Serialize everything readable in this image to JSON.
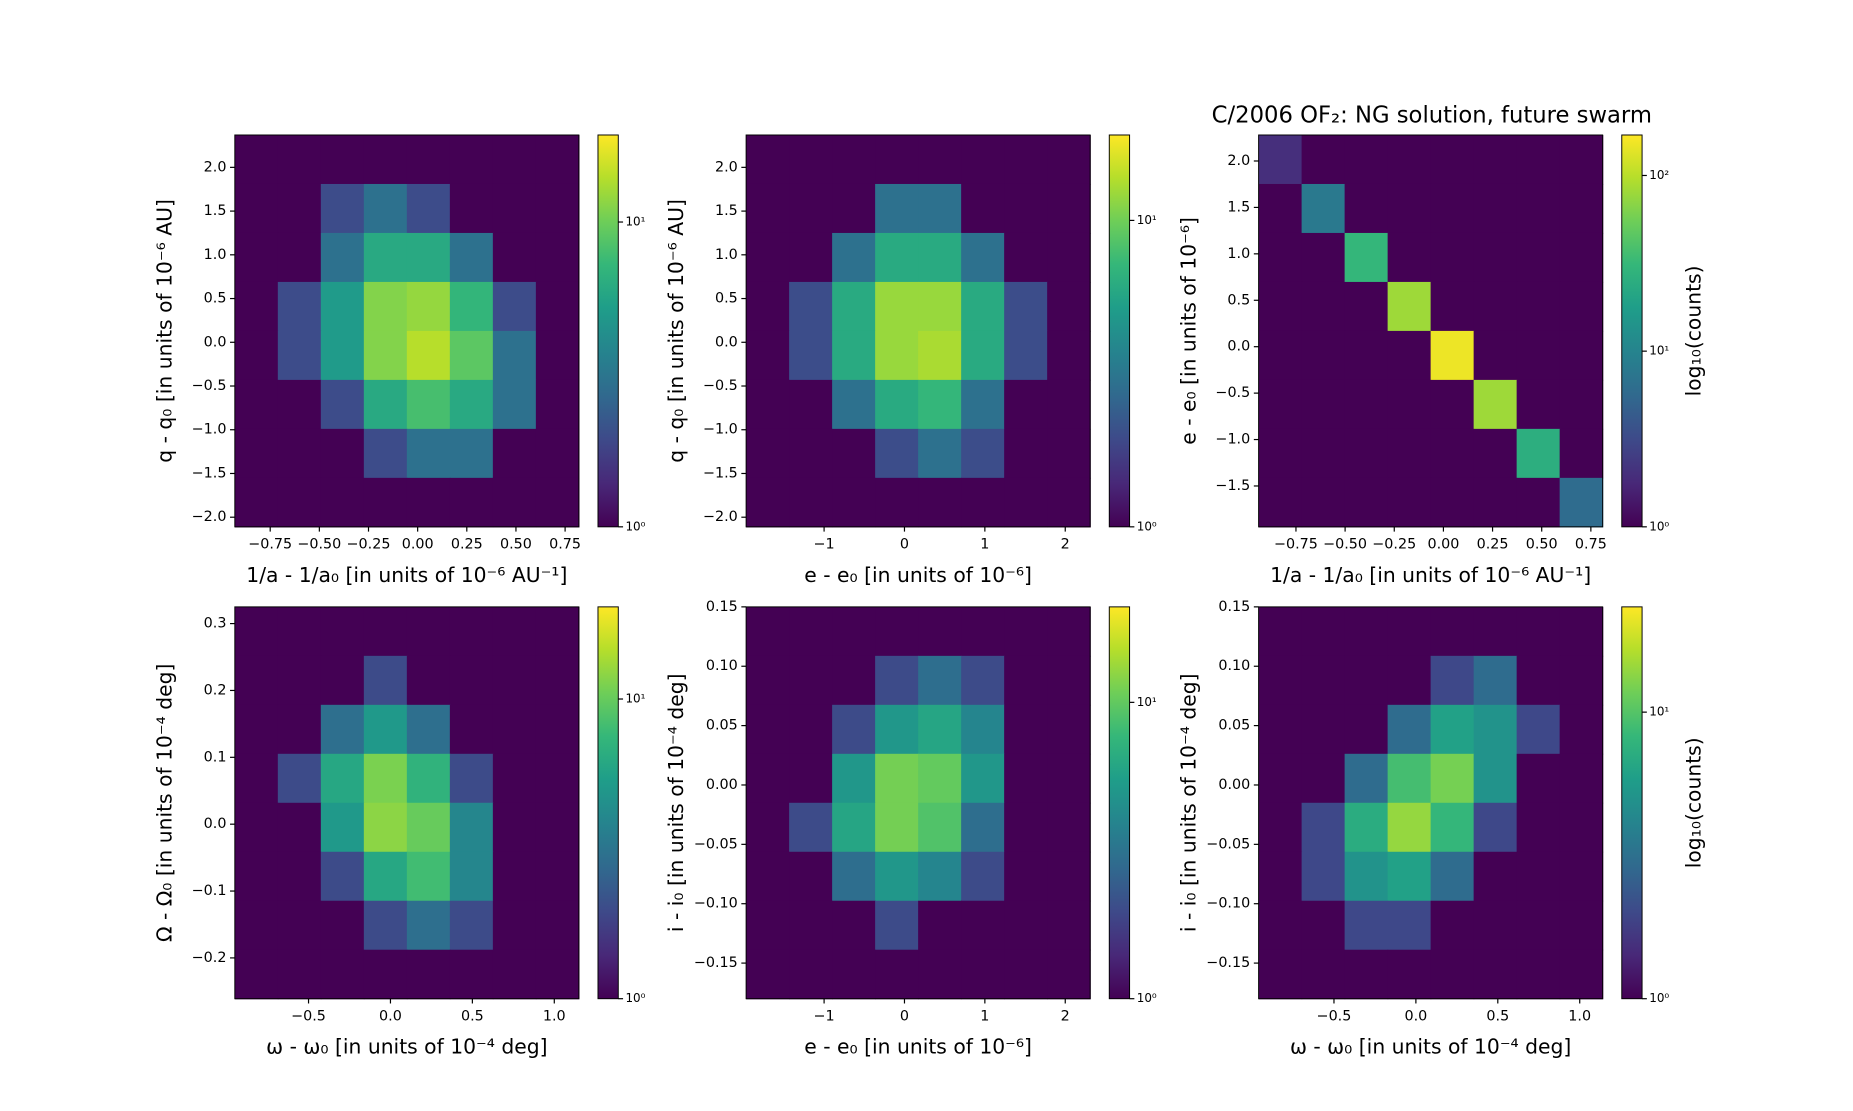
{
  "chart_data": [
    {
      "type": "hexbin",
      "colormap": "viridis",
      "cscale": "log",
      "xlabel": "1/a - 1/a₀ [in units of 10⁻⁶ AU⁻¹]",
      "ylabel": "q - q₀ [in units of 10⁻⁶ AU]",
      "xlim": [
        -0.93,
        0.82
      ],
      "ylim": [
        -2.11,
        2.37
      ],
      "xticks": [
        {
          "value": -0.75,
          "label": "−0.75"
        },
        {
          "value": -0.5,
          "label": "−0.50"
        },
        {
          "value": -0.25,
          "label": "−0.25"
        },
        {
          "value": 0,
          "label": "0.00"
        },
        0.25,
        {
          "value": 0.5,
          "label": "0.50"
        },
        0.75
      ],
      "yticks": [
        {
          "value": -2,
          "label": "−2.0"
        },
        {
          "value": -1.5,
          "label": "−1.5"
        },
        {
          "value": -1,
          "label": "−1.0"
        },
        {
          "value": -0.5,
          "label": "−0.5"
        },
        {
          "value": 0,
          "label": "0.0"
        },
        0.5,
        {
          "value": 1,
          "label": "1.0"
        },
        1.5,
        {
          "value": 2,
          "label": "2.0"
        }
      ],
      "clim": [
        1,
        19.3
      ],
      "cticks": [
        {
          "value": 1,
          "label": "10⁰"
        },
        {
          "value": 10,
          "label": "10¹"
        }
      ],
      "counts": [
        [
          0,
          0,
          0,
          1,
          1,
          0,
          0,
          0
        ],
        [
          0,
          1,
          2,
          3,
          2,
          1,
          0,
          0
        ],
        [
          0,
          1,
          3,
          6,
          6,
          3,
          1,
          0
        ],
        [
          1,
          2,
          5,
          11,
          12,
          7,
          2,
          0
        ],
        [
          0,
          2,
          5,
          11,
          14,
          9,
          3,
          1
        ],
        [
          0,
          1,
          2,
          6,
          8,
          6,
          3,
          1
        ],
        [
          0,
          0,
          1,
          2,
          3,
          3,
          1,
          0
        ],
        [
          0,
          0,
          0,
          1,
          1,
          1,
          0,
          0
        ]
      ]
    },
    {
      "type": "hexbin",
      "colormap": "viridis",
      "cscale": "log",
      "xlabel": "e - e₀ [in units of 10⁻⁶]",
      "ylabel": "q - q₀ [in units of 10⁻⁶ AU]",
      "xlim": [
        -1.97,
        2.31
      ],
      "ylim": [
        -2.11,
        2.37
      ],
      "xticks": [
        {
          "value": -1,
          "label": "−1"
        },
        0,
        1,
        2
      ],
      "yticks": [
        {
          "value": -2,
          "label": "−2.0"
        },
        {
          "value": -1.5,
          "label": "−1.5"
        },
        {
          "value": -1,
          "label": "−1.0"
        },
        {
          "value": -0.5,
          "label": "−0.5"
        },
        {
          "value": 0,
          "label": "0.0"
        },
        0.5,
        {
          "value": 1,
          "label": "1.0"
        },
        1.5,
        {
          "value": 2,
          "label": "2.0"
        }
      ],
      "clim": [
        1,
        19
      ],
      "cticks": [
        {
          "value": 1,
          "label": "10⁰"
        },
        {
          "value": 10,
          "label": "10¹"
        }
      ],
      "counts": [
        [
          0,
          0,
          0,
          1,
          1,
          0,
          0,
          0
        ],
        [
          0,
          0,
          1,
          3,
          3,
          1,
          0,
          0
        ],
        [
          0,
          1,
          3,
          6,
          6,
          3,
          1,
          0
        ],
        [
          0,
          2,
          6,
          12,
          12,
          6,
          2,
          0
        ],
        [
          1,
          2,
          6,
          12,
          13,
          6,
          2,
          1
        ],
        [
          0,
          1,
          3,
          6,
          7,
          3,
          1,
          0
        ],
        [
          0,
          0,
          1,
          2,
          3,
          2,
          1,
          0
        ],
        [
          0,
          0,
          0,
          1,
          1,
          0,
          0,
          0
        ]
      ]
    },
    {
      "type": "hexbin",
      "colormap": "viridis",
      "cscale": "log",
      "title": "C/2006 OF₂:  NG solution, future swarm",
      "xlabel": "1/a - 1/a₀ [in units of 10⁻⁶ AU⁻¹]",
      "ylabel": "e - e₀ [in units of 10⁻⁶]",
      "clabel": "log₁₀(counts)",
      "xlim": [
        -0.94,
        0.81
      ],
      "ylim": [
        -1.94,
        2.28
      ],
      "xticks": [
        {
          "value": -0.75,
          "label": "−0.75"
        },
        {
          "value": -0.5,
          "label": "−0.50"
        },
        {
          "value": -0.25,
          "label": "−0.25"
        },
        {
          "value": 0,
          "label": "0.00"
        },
        0.25,
        {
          "value": 0.5,
          "label": "0.50"
        },
        0.75
      ],
      "yticks": [
        {
          "value": -1.5,
          "label": "−1.5"
        },
        {
          "value": -1,
          "label": "−1.0"
        },
        {
          "value": -0.5,
          "label": "−0.5"
        },
        {
          "value": 0,
          "label": "0.0"
        },
        0.5,
        {
          "value": 1,
          "label": "1.0"
        },
        1.5,
        {
          "value": 2,
          "label": "2.0"
        }
      ],
      "clim": [
        1,
        170
      ],
      "cticks": [
        {
          "value": 1,
          "label": "10⁰"
        },
        {
          "value": 10,
          "label": "10¹"
        },
        {
          "value": 100,
          "label": "10²"
        }
      ],
      "counts": [
        [
          2,
          0,
          0,
          0,
          0,
          0,
          0,
          0
        ],
        [
          0,
          8,
          0,
          0,
          0,
          0,
          0,
          0
        ],
        [
          0,
          0,
          30,
          0,
          0,
          0,
          0,
          0
        ],
        [
          0,
          0,
          0,
          80,
          0,
          0,
          0,
          0
        ],
        [
          0,
          0,
          0,
          0,
          150,
          0,
          0,
          0
        ],
        [
          0,
          0,
          0,
          0,
          0,
          80,
          0,
          0
        ],
        [
          0,
          0,
          0,
          0,
          0,
          0,
          25,
          0
        ],
        [
          0,
          0,
          0,
          0,
          0,
          0,
          0,
          6
        ]
      ]
    },
    {
      "type": "hexbin",
      "colormap": "viridis",
      "cscale": "log",
      "xlabel": "ω - ω₀ [in units of 10⁻⁴ deg]",
      "ylabel": "Ω - Ω₀ [in units of 10⁻⁴ deg]",
      "xlim": [
        -0.95,
        1.15
      ],
      "ylim": [
        -0.261,
        0.325
      ],
      "xticks": [
        {
          "value": -0.5,
          "label": "−0.5"
        },
        {
          "value": 0,
          "label": "0.0"
        },
        0.5,
        {
          "value": 1,
          "label": "1.0"
        }
      ],
      "yticks": [
        {
          "value": -0.2,
          "label": "−0.2"
        },
        {
          "value": -0.1,
          "label": "−0.1"
        },
        {
          "value": 0,
          "label": "0.0"
        },
        0.1,
        0.2,
        0.3
      ],
      "clim": [
        1,
        20.3
      ],
      "cticks": [
        {
          "value": 1,
          "label": "10⁰"
        },
        {
          "value": 10,
          "label": "10¹"
        }
      ],
      "counts": [
        [
          0,
          0,
          0,
          0,
          0,
          0,
          0,
          0
        ],
        [
          0,
          1,
          1,
          2,
          1,
          0,
          0,
          0
        ],
        [
          0,
          1,
          3,
          5,
          3,
          1,
          0,
          0
        ],
        [
          1,
          2,
          6,
          11,
          7,
          2,
          1,
          0
        ],
        [
          0,
          1,
          5,
          12,
          10,
          4,
          1,
          0
        ],
        [
          0,
          1,
          2,
          6,
          8,
          4,
          1,
          0
        ],
        [
          0,
          0,
          1,
          2,
          3,
          2,
          1,
          0
        ],
        [
          0,
          0,
          0,
          1,
          1,
          1,
          0,
          0
        ]
      ]
    },
    {
      "type": "hexbin",
      "colormap": "viridis",
      "cscale": "log",
      "xlabel": "e - e₀ [in units of 10⁻⁶]",
      "ylabel": "i - i₀ [in units of 10⁻⁴ deg]",
      "xlim": [
        -1.97,
        2.31
      ],
      "ylim": [
        -0.18,
        0.15
      ],
      "xticks": [
        {
          "value": -1,
          "label": "−1"
        },
        0,
        1,
        2
      ],
      "yticks": [
        {
          "value": -0.15,
          "label": "−0.15"
        },
        {
          "value": -0.1,
          "label": "−0.10"
        },
        {
          "value": -0.05,
          "label": "−0.05"
        },
        {
          "value": 0,
          "label": "0.00"
        },
        0.05,
        {
          "value": 0.1,
          "label": "0.10"
        },
        0.15
      ],
      "clim": [
        1,
        21
      ],
      "cticks": [
        {
          "value": 1,
          "label": "10⁰"
        },
        {
          "value": 10,
          "label": "10¹"
        }
      ],
      "counts": [
        [
          0,
          0,
          0,
          0,
          1,
          1,
          0,
          0
        ],
        [
          0,
          0,
          1,
          2,
          3,
          2,
          1,
          0
        ],
        [
          0,
          1,
          2,
          5,
          6,
          4,
          1,
          0
        ],
        [
          0,
          1,
          5,
          11,
          10,
          5,
          1,
          0
        ],
        [
          0,
          2,
          6,
          11,
          9,
          3,
          1,
          0
        ],
        [
          0,
          1,
          3,
          5,
          4,
          2,
          0,
          0
        ],
        [
          0,
          0,
          1,
          2,
          1,
          1,
          0,
          0
        ],
        [
          0,
          0,
          0,
          0,
          0,
          0,
          0,
          0
        ]
      ]
    },
    {
      "type": "hexbin",
      "colormap": "viridis",
      "cscale": "log",
      "xlabel": "ω - ω₀ [in units of 10⁻⁴ deg]",
      "ylabel": "i - i₀ [in units of 10⁻⁴ deg]",
      "clabel": "log₁₀(counts)",
      "xlim": [
        -0.96,
        1.14
      ],
      "ylim": [
        -0.18,
        0.15
      ],
      "xticks": [
        {
          "value": -0.5,
          "label": "−0.5"
        },
        {
          "value": 0,
          "label": "0.0"
        },
        0.5,
        {
          "value": 1,
          "label": "1.0"
        }
      ],
      "yticks": [
        {
          "value": -0.15,
          "label": "−0.15"
        },
        {
          "value": -0.1,
          "label": "−0.10"
        },
        {
          "value": -0.05,
          "label": "−0.05"
        },
        {
          "value": 0,
          "label": "0.00"
        },
        0.05,
        {
          "value": 0.1,
          "label": "0.10"
        },
        0.15
      ],
      "clim": [
        1,
        23.3
      ],
      "cticks": [
        {
          "value": 1,
          "label": "10⁰"
        },
        {
          "value": 10,
          "label": "10¹"
        }
      ],
      "counts": [
        [
          0,
          0,
          0,
          0,
          0,
          1,
          0,
          0
        ],
        [
          0,
          0,
          0,
          1,
          2,
          3,
          1,
          0
        ],
        [
          0,
          0,
          1,
          3,
          6,
          5,
          2,
          0
        ],
        [
          0,
          1,
          3,
          9,
          12,
          5,
          1,
          0
        ],
        [
          0,
          2,
          7,
          14,
          8,
          2,
          0,
          0
        ],
        [
          0,
          2,
          5,
          6,
          3,
          1,
          0,
          0
        ],
        [
          1,
          1,
          2,
          2,
          1,
          0,
          0,
          0
        ],
        [
          0,
          0,
          0,
          0,
          0,
          0,
          0,
          0
        ]
      ]
    }
  ]
}
